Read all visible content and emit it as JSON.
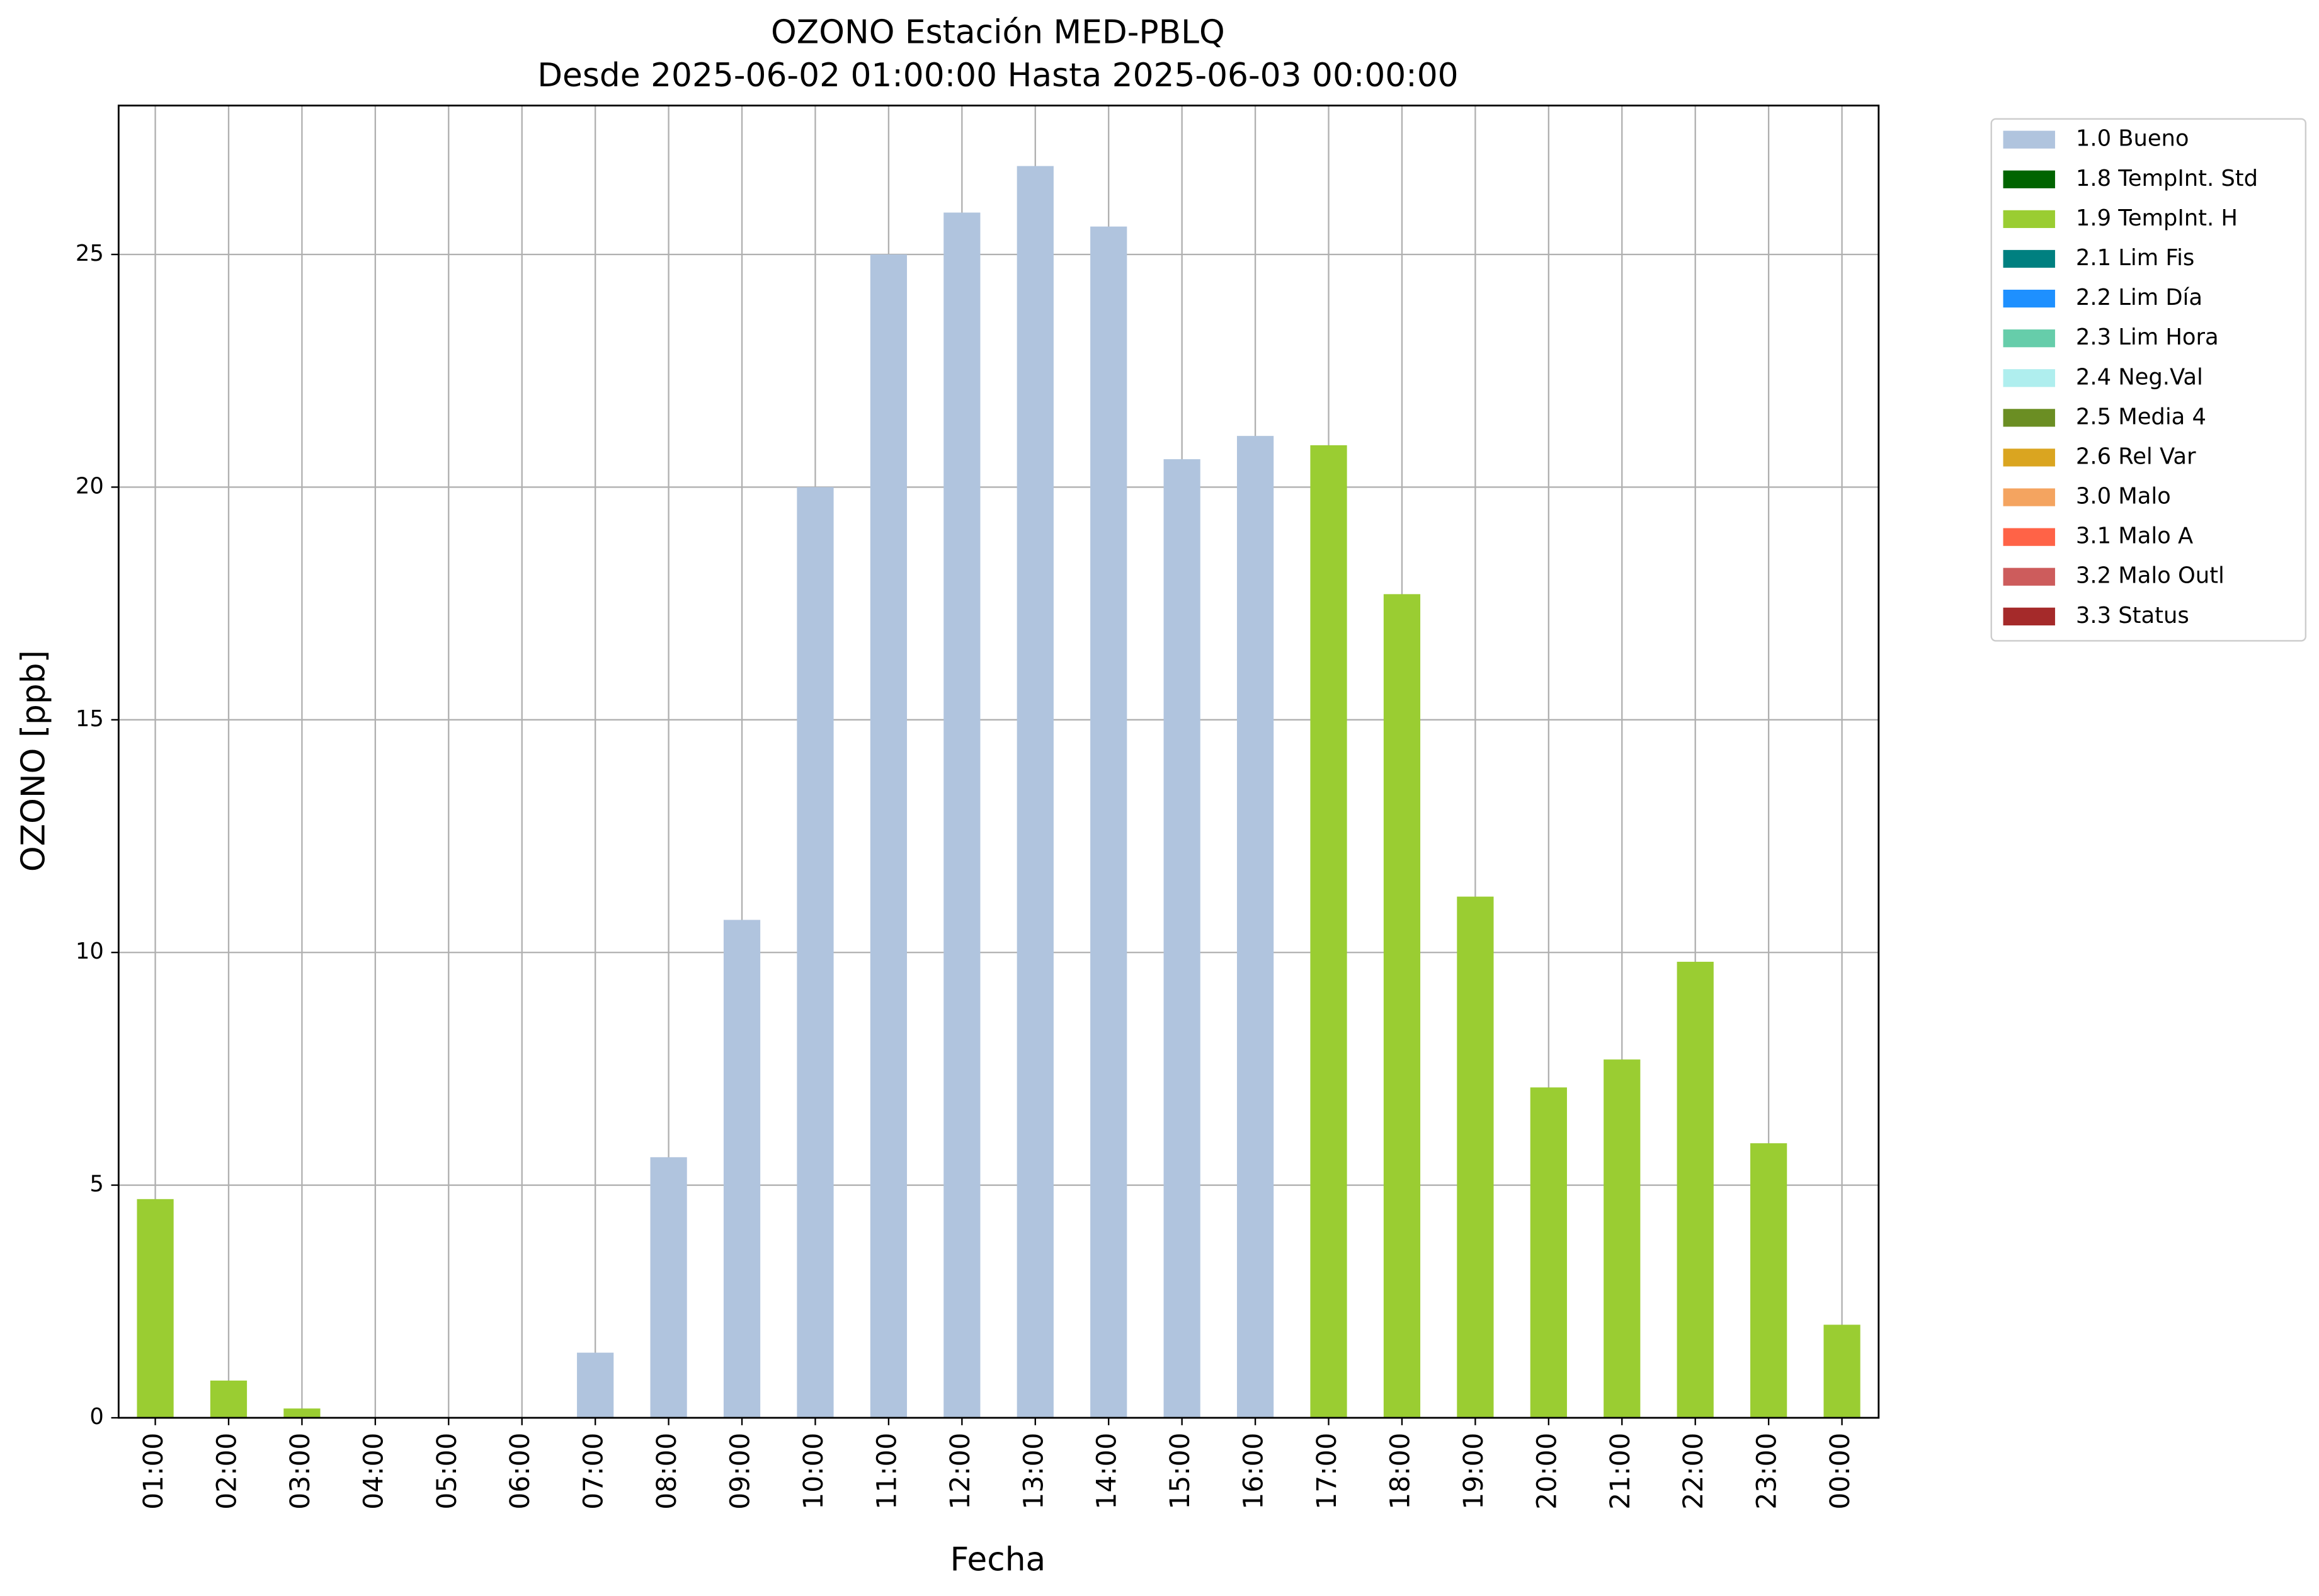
{
  "chart_data": {
    "type": "bar",
    "stacked": true,
    "title": "OZONO Estación MED-PBLQ",
    "subtitle": "Desde 2025-06-02 01:00:00 Hasta 2025-06-03 00:00:00",
    "x_label": "Fecha",
    "y_label": "OZONO [ppb]",
    "categories": [
      "01:00",
      "02:00",
      "03:00",
      "04:00",
      "05:00",
      "06:00",
      "07:00",
      "08:00",
      "09:00",
      "10:00",
      "11:00",
      "12:00",
      "13:00",
      "14:00",
      "15:00",
      "16:00",
      "17:00",
      "18:00",
      "19:00",
      "20:00",
      "21:00",
      "22:00",
      "23:00",
      "00:00"
    ],
    "ylim": [
      0,
      28.2
    ],
    "yticks": [
      0,
      5,
      10,
      15,
      20,
      25
    ],
    "grid": true,
    "legend": "outside-upper-right",
    "series": [
      {
        "name": "1.0 Bueno",
        "color": "#b0c4de",
        "values": [
          null,
          null,
          null,
          null,
          null,
          null,
          1.4,
          5.6,
          10.7,
          20.0,
          25.0,
          25.9,
          26.9,
          25.6,
          20.6,
          21.1,
          null,
          null,
          null,
          null,
          null,
          null,
          null,
          null
        ]
      },
      {
        "name": "1.8 TempInt. Std",
        "color": "#006400",
        "values": [
          null,
          null,
          null,
          null,
          null,
          null,
          null,
          null,
          null,
          null,
          null,
          null,
          null,
          null,
          null,
          null,
          null,
          null,
          null,
          null,
          null,
          null,
          null,
          null
        ]
      },
      {
        "name": "1.9 TempInt. H",
        "color": "#9acd32",
        "values": [
          4.7,
          0.8,
          0.2,
          null,
          null,
          null,
          null,
          null,
          null,
          null,
          null,
          null,
          null,
          null,
          null,
          null,
          20.9,
          17.7,
          11.2,
          7.1,
          7.7,
          9.8,
          5.9,
          2.0
        ]
      },
      {
        "name": "2.1 Lim Fis",
        "color": "#008080",
        "values": [
          null,
          null,
          null,
          null,
          null,
          null,
          null,
          null,
          null,
          null,
          null,
          null,
          null,
          null,
          null,
          null,
          null,
          null,
          null,
          null,
          null,
          null,
          null,
          null
        ]
      },
      {
        "name": "2.2 Lim Día",
        "color": "#1e90ff",
        "values": [
          null,
          null,
          null,
          null,
          null,
          null,
          null,
          null,
          null,
          null,
          null,
          null,
          null,
          null,
          null,
          null,
          null,
          null,
          null,
          null,
          null,
          null,
          null,
          null
        ]
      },
      {
        "name": "2.3 Lim Hora",
        "color": "#66cdaa",
        "values": [
          null,
          null,
          null,
          null,
          null,
          null,
          null,
          null,
          null,
          null,
          null,
          null,
          null,
          null,
          null,
          null,
          null,
          null,
          null,
          null,
          null,
          null,
          null,
          null
        ]
      },
      {
        "name": "2.4 Neg.Val",
        "color": "#afeeee",
        "values": [
          null,
          null,
          null,
          null,
          null,
          null,
          null,
          null,
          null,
          null,
          null,
          null,
          null,
          null,
          null,
          null,
          null,
          null,
          null,
          null,
          null,
          null,
          null,
          null
        ]
      },
      {
        "name": "2.5 Media 4",
        "color": "#6b8e23",
        "values": [
          null,
          null,
          null,
          null,
          null,
          null,
          null,
          null,
          null,
          null,
          null,
          null,
          null,
          null,
          null,
          null,
          null,
          null,
          null,
          null,
          null,
          null,
          null,
          null
        ]
      },
      {
        "name": "2.6 Rel Var",
        "color": "#daa520",
        "values": [
          null,
          null,
          null,
          null,
          null,
          null,
          null,
          null,
          null,
          null,
          null,
          null,
          null,
          null,
          null,
          null,
          null,
          null,
          null,
          null,
          null,
          null,
          null,
          null
        ]
      },
      {
        "name": "3.0 Malo",
        "color": "#f4a460",
        "values": [
          null,
          null,
          null,
          null,
          null,
          null,
          null,
          null,
          null,
          null,
          null,
          null,
          null,
          null,
          null,
          null,
          null,
          null,
          null,
          null,
          null,
          null,
          null,
          null
        ]
      },
      {
        "name": "3.1 Malo A",
        "color": "#ff6347",
        "values": [
          null,
          null,
          null,
          null,
          null,
          null,
          null,
          null,
          null,
          null,
          null,
          null,
          null,
          null,
          null,
          null,
          null,
          null,
          null,
          null,
          null,
          null,
          null,
          null
        ]
      },
      {
        "name": "3.2 Malo Outl",
        "color": "#cd5c5c",
        "values": [
          null,
          null,
          null,
          null,
          null,
          null,
          null,
          null,
          null,
          null,
          null,
          null,
          null,
          null,
          null,
          null,
          null,
          null,
          null,
          null,
          null,
          null,
          null,
          null
        ]
      },
      {
        "name": "3.3 Status",
        "color": "#a52a2a",
        "values": [
          null,
          null,
          null,
          null,
          null,
          null,
          null,
          null,
          null,
          null,
          null,
          null,
          null,
          null,
          null,
          null,
          null,
          null,
          null,
          null,
          null,
          null,
          null,
          null
        ]
      }
    ]
  }
}
